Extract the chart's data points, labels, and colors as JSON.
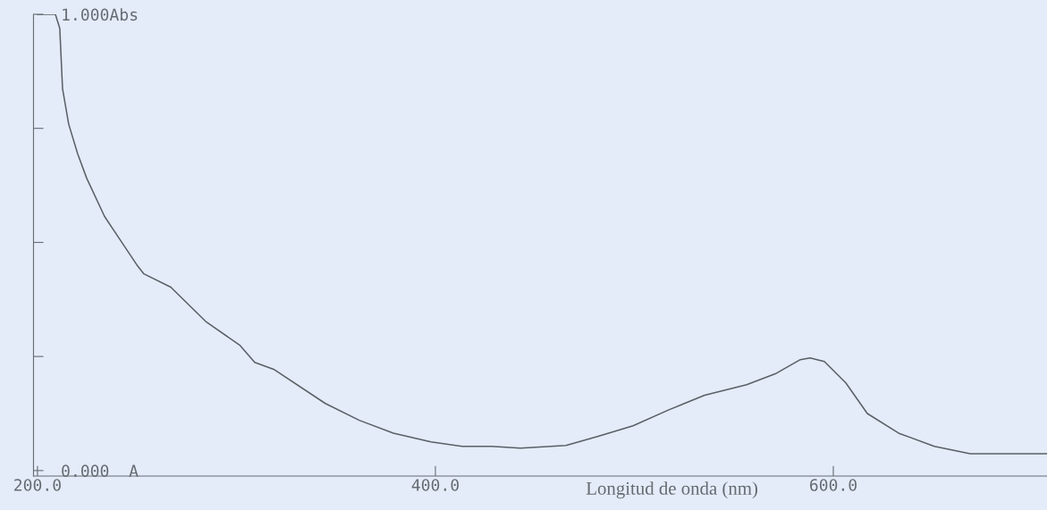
{
  "chart_data": {
    "type": "line",
    "xlabel": "Longitud de onda (nm)",
    "x": [
      200,
      209,
      211.2,
      212.6,
      215.7,
      220.2,
      224.7,
      233.7,
      242.7,
      249.9,
      253.5,
      267.0,
      284.5,
      301.6,
      309.2,
      318.7,
      344.7,
      361.8,
      378.9,
      397.8,
      413.5,
      428.3,
      442.7,
      465.6,
      481.8,
      499.3,
      517.3,
      535.3,
      556.4,
      570.8,
      583.4,
      588.3,
      595.5,
      606.3,
      617.1,
      632.8,
      650.8,
      668.8,
      707.4
    ],
    "series": [
      {
        "color": "#5a5f66",
        "values": [
          1.0,
          1.0,
          0.969,
          0.837,
          0.759,
          0.694,
          0.641,
          0.557,
          0.498,
          0.451,
          0.431,
          0.402,
          0.327,
          0.275,
          0.237,
          0.222,
          0.147,
          0.11,
          0.082,
          0.063,
          0.053,
          0.053,
          0.049,
          0.055,
          0.075,
          0.098,
          0.133,
          0.165,
          0.188,
          0.212,
          0.243,
          0.247,
          0.239,
          0.192,
          0.125,
          0.082,
          0.053,
          0.037,
          0.037
        ]
      }
    ],
    "xlim": [
      198,
      707.4
    ],
    "xticks": [
      {
        "value": 200,
        "label": "200.0"
      },
      {
        "value": 400,
        "label": "400.0"
      },
      {
        "value": 600,
        "label": "600.0"
      }
    ],
    "ylim": [
      -0.012,
      1.0
    ],
    "yticks": [
      {
        "value": 0,
        "label": "0.000  A"
      },
      {
        "value": 0.25,
        "label": null
      },
      {
        "value": 0.5,
        "label": null
      },
      {
        "value": 0.75,
        "label": null
      },
      {
        "value": 1.0,
        "label": "1.000Abs"
      }
    ],
    "grid": false,
    "legend": false,
    "marker": "none",
    "line_style": "solid"
  }
}
